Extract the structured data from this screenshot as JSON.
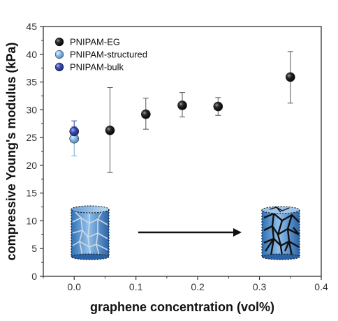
{
  "chart_data": {
    "type": "scatter",
    "xlabel": "graphene concentration (vol%)",
    "ylabel": "compressive Young's modulus (kPa)",
    "xlim": [
      -0.05,
      0.4
    ],
    "ylim": [
      0,
      45
    ],
    "xticks": [
      "0.0",
      "0.1",
      "0.2",
      "0.3",
      "0.4"
    ],
    "yticks": [
      "0",
      "5",
      "10",
      "15",
      "20",
      "25",
      "30",
      "35",
      "40",
      "45"
    ],
    "grid": false,
    "legend_position": "top-left",
    "series": [
      {
        "name": "PNIPAM-EG",
        "color": "#111111",
        "points": [
          {
            "x": 0.058,
            "y": 26.3,
            "err_low": 18.7,
            "err_high": 34.0
          },
          {
            "x": 0.116,
            "y": 29.2,
            "err_low": 26.5,
            "err_high": 32.1
          },
          {
            "x": 0.175,
            "y": 30.8,
            "err_low": 28.7,
            "err_high": 33.1
          },
          {
            "x": 0.233,
            "y": 30.6,
            "err_low": 29.0,
            "err_high": 32.2
          },
          {
            "x": 0.35,
            "y": 35.9,
            "err_low": 31.2,
            "err_high": 40.5
          }
        ]
      },
      {
        "name": "PNIPAM-structured",
        "color": "#74a9dd",
        "points": [
          {
            "x": 0.0,
            "y": 24.8,
            "err_low": 21.7,
            "err_high": 27.0
          }
        ]
      },
      {
        "name": "PNIPAM-bulk",
        "color": "#2f3f9e",
        "points": [
          {
            "x": 0.0,
            "y": 26.1,
            "err_low": 24.6,
            "err_high": 28.0
          }
        ]
      }
    ]
  },
  "insets": {
    "left_icon": "structured-hydrogel-cylinder-icon",
    "arrow_icon": "right-arrow-icon",
    "right_icon": "graphene-network-hydrogel-cylinder-icon"
  }
}
